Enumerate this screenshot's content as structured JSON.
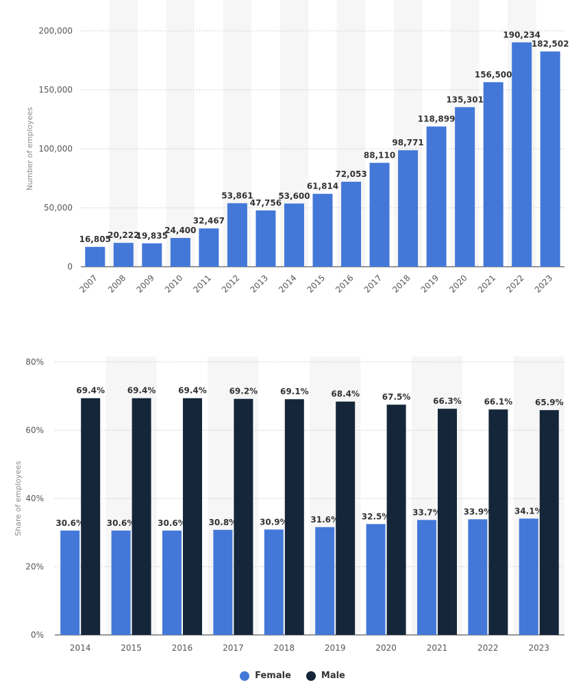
{
  "chart_data": [
    {
      "type": "bar",
      "ylabel": "Number of employees",
      "ylim": [
        0,
        200000
      ],
      "yticks": [
        "0",
        "50,000",
        "100,000",
        "150,000",
        "200,000"
      ],
      "categories": [
        "2007",
        "2008",
        "2009",
        "2010",
        "2011",
        "2012",
        "2013",
        "2014",
        "2015",
        "2016",
        "2017",
        "2018",
        "2019",
        "2020",
        "2021",
        "2022",
        "2023"
      ],
      "values": [
        16805,
        20222,
        19835,
        24400,
        32467,
        53861,
        47756,
        53600,
        61814,
        72053,
        88110,
        98771,
        118899,
        135301,
        156500,
        190234,
        182502
      ],
      "labels": [
        "16,805",
        "20,222",
        "19,835",
        "24,400",
        "32,467",
        "53,861",
        "47,756",
        "53,600",
        "61,814",
        "72,053",
        "88,110",
        "98,771",
        "118,899",
        "135,301",
        "156,500",
        "190,234",
        "182,502"
      ],
      "color": "#4378d8",
      "grid": true
    },
    {
      "type": "bar",
      "ylabel": "Share of employees",
      "ylim": [
        0,
        80
      ],
      "yticks": [
        "0%",
        "20%",
        "40%",
        "60%",
        "80%"
      ],
      "categories": [
        "2014",
        "2015",
        "2016",
        "2017",
        "2018",
        "2019",
        "2020",
        "2021",
        "2022",
        "2023"
      ],
      "series": [
        {
          "name": "Female",
          "color": "#4378d8",
          "values": [
            30.6,
            30.6,
            30.6,
            30.8,
            30.9,
            31.6,
            32.5,
            33.7,
            33.9,
            34.1
          ],
          "labels": [
            "30.6%",
            "30.6%",
            "30.6%",
            "30.8%",
            "30.9%",
            "31.6%",
            "32.5%",
            "33.7%",
            "33.9%",
            "34.1%"
          ]
        },
        {
          "name": "Male",
          "color": "#15263b",
          "values": [
            69.4,
            69.4,
            69.4,
            69.2,
            69.1,
            68.4,
            67.5,
            66.3,
            66.1,
            65.9
          ],
          "labels": [
            "69.4%",
            "69.4%",
            "69.4%",
            "69.2%",
            "69.1%",
            "68.4%",
            "67.5%",
            "66.3%",
            "66.1%",
            "65.9%"
          ]
        }
      ],
      "legend_position": "bottom-center",
      "grid": true
    }
  ]
}
